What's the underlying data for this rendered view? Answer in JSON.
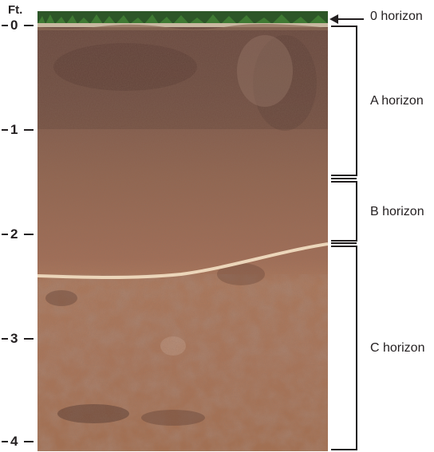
{
  "unit_label": "Ft.",
  "depth_ticks": [
    "0",
    "1",
    "2",
    "3",
    "4"
  ],
  "horizons": {
    "o": "0 horizon",
    "a": "A horizon",
    "b": "B horizon",
    "c": "C horizon"
  },
  "colors": {
    "ink": "#231f20",
    "grass": "#2e5a2a",
    "topsoil": "#7a5548",
    "subsoil": "#a86e55",
    "parent": "#b27b5e",
    "boundary": "#e9d2b6"
  }
}
